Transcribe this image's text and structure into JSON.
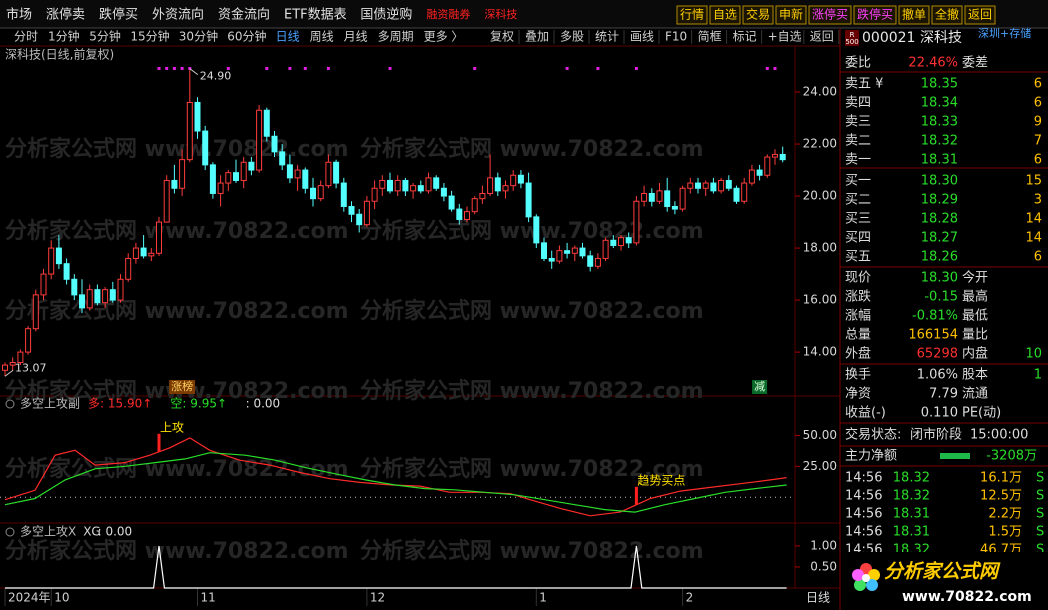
{
  "menu": [
    "市场",
    "涨停卖",
    "跌停买",
    "外资流向",
    "资金流向",
    "ETF数据表",
    "国债逆购"
  ],
  "menu_red": [
    "融资融券",
    "深科技"
  ],
  "buttons": [
    "行情",
    "自选",
    "交易",
    "申新",
    "涨停买",
    "跌停买",
    "撤单",
    "全撤",
    "返回"
  ],
  "toolbar_left": [
    "分时",
    "1分钟",
    "5分钟",
    "15分钟",
    "30分钟",
    "60分钟",
    "日线",
    "周线",
    "月线",
    "多周期",
    "更多 〉"
  ],
  "toolbar_active": "日线",
  "toolbar_right": [
    "复权",
    "叠加",
    "多股",
    "统计",
    "画线",
    "F10",
    "简框",
    "标记",
    "+自选",
    "返回"
  ],
  "footer_period": "日线",
  "watermark": "分析家公式网 www.70822.com",
  "logo": {
    "title": "分析家公式网",
    "url": "www.70822.com"
  },
  "chart_data": [
    {
      "type": "candlestick",
      "title": "深科技(日线,前复权)",
      "ylim": [
        12.35,
        25.04
      ],
      "yticks": [
        {
          "value": 14,
          "label": "14.00"
        },
        {
          "value": 16,
          "label": "16.00"
        },
        {
          "value": 18,
          "label": "18.00"
        },
        {
          "value": 20,
          "label": "20.00"
        },
        {
          "value": 22,
          "label": "22.00"
        },
        {
          "value": 24,
          "label": "24.00"
        }
      ],
      "up_color": "#ff3c3c",
      "down_color": "#54ffff",
      "candles": [
        [
          13.3,
          13.6,
          13.07,
          13.5
        ],
        [
          13.5,
          13.8,
          13.3,
          13.6
        ],
        [
          13.6,
          14.1,
          13.5,
          14.0
        ],
        [
          14.0,
          15.0,
          13.9,
          14.9
        ],
        [
          14.9,
          16.4,
          14.8,
          16.2
        ],
        [
          16.2,
          17.2,
          16.0,
          17.0
        ],
        [
          17.0,
          18.3,
          16.8,
          18.0
        ],
        [
          18.0,
          18.5,
          17.2,
          17.4
        ],
        [
          17.4,
          17.6,
          16.6,
          16.8
        ],
        [
          16.8,
          17.0,
          16.0,
          16.2
        ],
        [
          16.2,
          16.8,
          15.5,
          15.7
        ],
        [
          15.7,
          16.6,
          15.6,
          16.4
        ],
        [
          16.4,
          16.6,
          15.8,
          15.9
        ],
        [
          15.9,
          16.5,
          15.7,
          16.4
        ],
        [
          16.4,
          16.7,
          15.9,
          16.0
        ],
        [
          16.0,
          17.0,
          15.9,
          16.8
        ],
        [
          16.8,
          17.8,
          16.7,
          17.6
        ],
        [
          17.6,
          18.2,
          17.4,
          18.0
        ],
        [
          18.0,
          18.5,
          17.6,
          17.7
        ],
        [
          17.7,
          18.0,
          17.5,
          17.8
        ],
        [
          17.8,
          19.2,
          17.7,
          19.0
        ],
        [
          19.0,
          20.8,
          19.0,
          20.6
        ],
        [
          20.6,
          21.2,
          20.1,
          20.3
        ],
        [
          20.3,
          21.8,
          20.0,
          21.4
        ],
        [
          21.4,
          24.9,
          21.3,
          23.6
        ],
        [
          23.6,
          23.8,
          22.2,
          22.5
        ],
        [
          22.5,
          22.7,
          21.0,
          21.2
        ],
        [
          21.2,
          21.3,
          19.9,
          20.1
        ],
        [
          20.1,
          20.8,
          19.6,
          20.5
        ],
        [
          20.5,
          21.0,
          20.2,
          20.9
        ],
        [
          20.9,
          21.4,
          20.5,
          20.6
        ],
        [
          20.6,
          21.5,
          20.3,
          21.3
        ],
        [
          21.3,
          21.5,
          20.8,
          21.0
        ],
        [
          21.0,
          23.5,
          20.9,
          23.3
        ],
        [
          23.3,
          23.4,
          22.1,
          22.3
        ],
        [
          22.3,
          22.5,
          21.5,
          21.7
        ],
        [
          21.7,
          22.0,
          21.0,
          21.2
        ],
        [
          21.2,
          21.6,
          20.5,
          20.7
        ],
        [
          20.7,
          21.2,
          20.2,
          21.0
        ],
        [
          21.0,
          21.1,
          20.1,
          20.3
        ],
        [
          20.3,
          20.7,
          19.6,
          19.9
        ],
        [
          19.9,
          20.6,
          19.8,
          20.4
        ],
        [
          20.4,
          21.6,
          20.3,
          21.3
        ],
        [
          21.3,
          21.4,
          20.3,
          20.5
        ],
        [
          20.5,
          20.7,
          19.4,
          19.6
        ],
        [
          19.6,
          19.8,
          19.0,
          19.3
        ],
        [
          19.3,
          19.5,
          18.6,
          18.9
        ],
        [
          18.9,
          20.0,
          18.8,
          19.8
        ],
        [
          19.8,
          20.6,
          19.5,
          20.3
        ],
        [
          20.3,
          20.8,
          20.0,
          20.6
        ],
        [
          20.6,
          20.9,
          20.1,
          20.2
        ],
        [
          20.2,
          20.8,
          20.0,
          20.6
        ],
        [
          20.6,
          20.7,
          20.0,
          20.2
        ],
        [
          20.2,
          20.5,
          19.9,
          20.4
        ],
        [
          20.4,
          20.6,
          20.1,
          20.2
        ],
        [
          20.2,
          20.9,
          20.1,
          20.7
        ],
        [
          20.7,
          20.8,
          20.2,
          20.3
        ],
        [
          20.3,
          20.5,
          19.8,
          20.0
        ],
        [
          20.0,
          20.2,
          19.4,
          19.5
        ],
        [
          19.5,
          19.7,
          18.9,
          19.1
        ],
        [
          19.1,
          19.6,
          19.0,
          19.4
        ],
        [
          19.4,
          20.0,
          19.3,
          19.9
        ],
        [
          19.9,
          20.4,
          19.7,
          20.1
        ],
        [
          20.1,
          21.6,
          20.0,
          20.7
        ],
        [
          20.7,
          20.9,
          20.0,
          20.2
        ],
        [
          20.2,
          20.6,
          19.9,
          20.4
        ],
        [
          20.4,
          21.0,
          20.2,
          20.8
        ],
        [
          20.8,
          21.0,
          20.3,
          20.5
        ],
        [
          20.5,
          20.9,
          19.0,
          19.2
        ],
        [
          19.2,
          19.3,
          18.0,
          18.2
        ],
        [
          18.2,
          18.4,
          17.5,
          17.6
        ],
        [
          17.6,
          17.9,
          17.2,
          17.5
        ],
        [
          17.5,
          18.1,
          17.4,
          17.9
        ],
        [
          17.9,
          18.2,
          17.6,
          17.8
        ],
        [
          17.8,
          18.1,
          17.5,
          18.0
        ],
        [
          18.0,
          18.2,
          17.6,
          17.7
        ],
        [
          17.7,
          17.9,
          17.1,
          17.3
        ],
        [
          17.3,
          17.8,
          17.2,
          17.6
        ],
        [
          17.6,
          18.4,
          17.5,
          18.3
        ],
        [
          18.3,
          18.5,
          18.0,
          18.1
        ],
        [
          18.1,
          18.5,
          17.9,
          18.4
        ],
        [
          18.4,
          18.6,
          18.0,
          18.2
        ],
        [
          18.2,
          20.0,
          18.1,
          19.8
        ],
        [
          19.8,
          20.4,
          19.6,
          20.1
        ],
        [
          20.1,
          20.3,
          19.6,
          19.8
        ],
        [
          19.8,
          20.5,
          19.7,
          20.2
        ],
        [
          20.2,
          20.7,
          19.4,
          19.6
        ],
        [
          19.6,
          19.8,
          19.3,
          19.5
        ],
        [
          19.5,
          20.4,
          19.4,
          20.3
        ],
        [
          20.3,
          20.7,
          20.1,
          20.5
        ],
        [
          20.5,
          20.7,
          20.1,
          20.3
        ],
        [
          20.3,
          20.6,
          20.0,
          20.5
        ],
        [
          20.5,
          20.7,
          20.1,
          20.2
        ],
        [
          20.2,
          20.7,
          20.1,
          20.6
        ],
        [
          20.6,
          20.8,
          20.2,
          20.3
        ],
        [
          20.3,
          20.4,
          19.7,
          19.8
        ],
        [
          19.8,
          20.7,
          19.7,
          20.5
        ],
        [
          20.5,
          21.2,
          20.4,
          21.0
        ],
        [
          21.0,
          21.2,
          20.6,
          20.8
        ],
        [
          20.8,
          21.6,
          20.7,
          21.5
        ],
        [
          21.5,
          21.8,
          21.2,
          21.6
        ],
        [
          21.6,
          21.9,
          21.3,
          21.4
        ]
      ],
      "signals": [
        20,
        21,
        22,
        23,
        24,
        29,
        34,
        37,
        39,
        42,
        50,
        61,
        73,
        77,
        82,
        99,
        100
      ],
      "annotations": [
        {
          "text": "24.90",
          "index": 24,
          "value": 24.9
        },
        {
          "text": "13.07",
          "index": 0,
          "value": 13.07
        }
      ],
      "tags": [
        {
          "text": "涨榜",
          "index": 23
        },
        {
          "text": "减",
          "index": 98
        }
      ],
      "x_labels": [
        {
          "label": "2024年",
          "index": 0
        },
        {
          "label": "10",
          "index": 6
        },
        {
          "label": "11",
          "index": 25
        },
        {
          "label": "12",
          "index": 47
        },
        {
          "label": "1",
          "index": 69
        },
        {
          "label": "2",
          "index": 88
        }
      ]
    },
    {
      "type": "line",
      "title": "多空上攻副",
      "ylim": [
        -20,
        56
      ],
      "yticks": [
        {
          "value": 25,
          "label": "25.00"
        },
        {
          "value": 50,
          "label": "50.00"
        }
      ],
      "reference": 0,
      "series": [
        {
          "name": "多",
          "color": "#ff2a2a",
          "readout": ": 15.90↑",
          "x": [
            0,
            3.9,
            6.5,
            9.1,
            11.7,
            15.6,
            18.8,
            21.4,
            24,
            26.6,
            30.5,
            34.4,
            38.3,
            42.2,
            46.1,
            50,
            53.9,
            57.8,
            61.7,
            65.6,
            68.2,
            72.1,
            76,
            79.9,
            83.8,
            87.7,
            91.6,
            95.5,
            99.4,
            101.5
          ],
          "values": [
            -2,
            5.6,
            34,
            38,
            26,
            28,
            34,
            40,
            48,
            38,
            30,
            26,
            20,
            15,
            12,
            10,
            9,
            4,
            4,
            3,
            -2,
            -9,
            -15,
            -12,
            -1,
            5,
            8,
            11,
            14,
            15.9
          ]
        },
        {
          "name": "空",
          "color": "#2adf2a",
          "readout": ": 9.95↑",
          "x": [
            0,
            3.9,
            7.8,
            11.7,
            15.6,
            19.5,
            23.4,
            26.6,
            31.2,
            35.1,
            39,
            42.9,
            46.8,
            50.6,
            54.5,
            58.4,
            62.3,
            66.2,
            70.1,
            74,
            77.9,
            81.8,
            85.7,
            89.6,
            93.5,
            97.4,
            101.5
          ],
          "values": [
            -6,
            -1,
            14,
            23,
            25,
            28,
            31,
            36,
            34,
            30,
            24,
            19,
            14,
            10,
            7,
            6,
            4,
            2,
            -2,
            -6,
            -10,
            -12,
            -6,
            -1,
            4,
            7,
            9.95
          ]
        }
      ],
      "extra_readout": ": 0.00",
      "annotations": [
        {
          "text": "上攻",
          "index": 20
        },
        {
          "text": "趋势买点",
          "index": 82
        }
      ]
    },
    {
      "type": "line",
      "title": "多空上攻X",
      "ylim": [
        0,
        1.14
      ],
      "yticks": [
        {
          "value": 0.5,
          "label": "0.50"
        },
        {
          "value": 1,
          "label": "1.00"
        }
      ],
      "series": [
        {
          "name": "XG",
          "color": "#ffffff",
          "readout": ": 0.00",
          "x": [
            0,
            19.3,
            20,
            20.7,
            81.3,
            82,
            82.7,
            101.5
          ],
          "values": [
            0,
            0,
            1,
            0,
            0,
            1,
            0,
            0
          ]
        }
      ]
    }
  ],
  "quote": {
    "badge": [
      "R",
      "500"
    ],
    "code": "000021",
    "name": "深科技",
    "board": "深圳+存储",
    "ratio": [
      "委比",
      "22.46%",
      "委差"
    ],
    "asks": [
      [
        "卖五 ¥",
        "18.35",
        "6"
      ],
      [
        "卖四",
        "18.34",
        "6"
      ],
      [
        "卖三",
        "18.33",
        "9"
      ],
      [
        "卖二",
        "18.32",
        "7"
      ],
      [
        "卖一",
        "18.31",
        "6"
      ]
    ],
    "bids": [
      [
        "买一",
        "18.30",
        "15"
      ],
      [
        "买二",
        "18.29",
        "3"
      ],
      [
        "买三",
        "18.28",
        "14"
      ],
      [
        "买四",
        "18.27",
        "14"
      ],
      [
        "买五",
        "18.26",
        "6"
      ]
    ],
    "stats": [
      [
        "现价",
        "18.30",
        "今开"
      ],
      [
        "涨跌",
        "-0.15",
        "最高"
      ],
      [
        "涨幅",
        "-0.81%",
        "最低"
      ],
      [
        "总量",
        "166154",
        "量比"
      ],
      [
        "外盘",
        "65298",
        "内盘",
        "10"
      ],
      [
        "换手",
        "1.06%",
        "股本",
        "1"
      ],
      [
        "净资",
        "7.79",
        "流通"
      ],
      [
        "收益(-)",
        "0.110",
        "PE(动)"
      ]
    ],
    "status": [
      "交易状态:",
      "闭市阶段",
      "15:00:00"
    ],
    "flow": [
      "主力净额",
      "-3208万"
    ],
    "trades": [
      [
        "14:56",
        "18.32",
        "16.1万",
        "S"
      ],
      [
        "14:56",
        "18.32",
        "12.5万",
        "S"
      ],
      [
        "14:56",
        "18.31",
        "2.2万",
        "S"
      ],
      [
        "14:56",
        "18.31",
        "1.5万",
        "S"
      ],
      [
        "14:56",
        "18.32",
        "46.7万",
        "S"
      ]
    ]
  }
}
